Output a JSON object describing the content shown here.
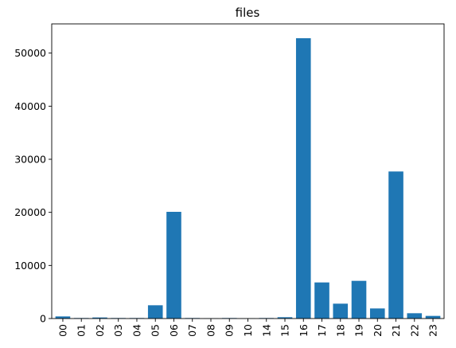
{
  "chart_data": {
    "type": "bar",
    "title": "files",
    "xlabel": "",
    "ylabel": "",
    "categories": [
      "00",
      "01",
      "02",
      "03",
      "04",
      "05",
      "06",
      "07",
      "08",
      "09",
      "10",
      "14",
      "15",
      "16",
      "17",
      "18",
      "19",
      "20",
      "21",
      "22",
      "23"
    ],
    "values": [
      400,
      100,
      200,
      100,
      100,
      2500,
      20100,
      100,
      50,
      100,
      50,
      100,
      250,
      52800,
      6800,
      2800,
      7100,
      1900,
      27700,
      1000,
      500
    ],
    "ylim": [
      0,
      55500
    ],
    "yticks": [
      0,
      10000,
      20000,
      30000,
      40000,
      50000
    ],
    "grid": false,
    "bar_color": "#1f77b4"
  }
}
